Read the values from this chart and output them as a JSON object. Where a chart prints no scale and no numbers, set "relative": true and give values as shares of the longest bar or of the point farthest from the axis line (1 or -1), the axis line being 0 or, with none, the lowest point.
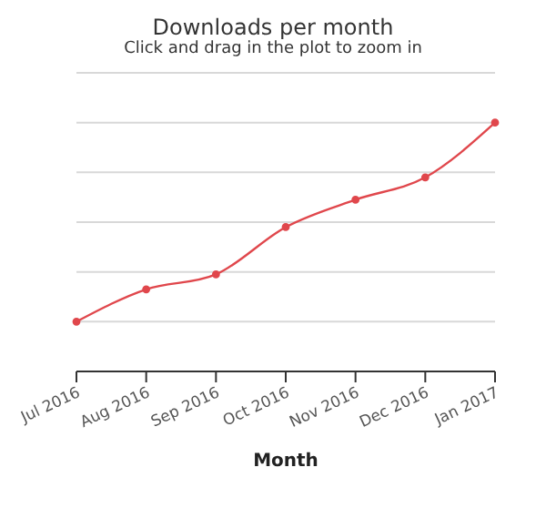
{
  "chart_data": {
    "type": "line",
    "title": "Downloads per month",
    "subtitle": "Click and drag in the plot to zoom in",
    "xlabel": "Month",
    "categories": [
      "Jul 2016",
      "Aug 2016",
      "Sep 2016",
      "Oct 2016",
      "Nov 2016",
      "Dec 2016",
      "Jan 2017"
    ],
    "series": [
      {
        "color": "#e0474c",
        "values": [
          0.2,
          0.33,
          0.39,
          0.58,
          0.69,
          0.78,
          1
        ]
      }
    ],
    "relative": true,
    "grid": "y",
    "marker": "circle",
    "line_style": "solid"
  }
}
